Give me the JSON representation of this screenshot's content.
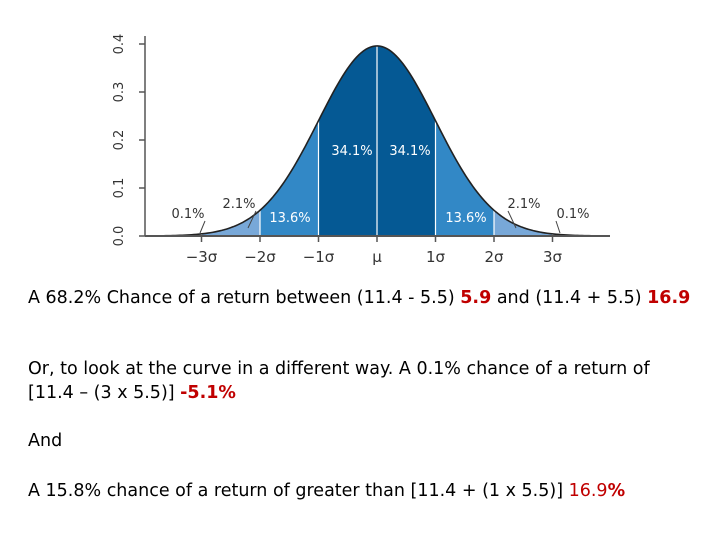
{
  "chart_data": {
    "type": "area",
    "title": "",
    "xlabel": "",
    "ylabel": "",
    "xlim": [
      -3.8,
      3.8
    ],
    "ylim": [
      0,
      0.4
    ],
    "x_ticks": [
      {
        "value": -3,
        "label": "−3σ"
      },
      {
        "value": -2,
        "label": "−2σ"
      },
      {
        "value": -1,
        "label": "−1σ"
      },
      {
        "value": 0,
        "label": "μ"
      },
      {
        "value": 1,
        "label": "1σ"
      },
      {
        "value": 2,
        "label": "2σ"
      },
      {
        "value": 3,
        "label": "3σ"
      }
    ],
    "y_ticks": [
      {
        "value": 0.0,
        "label": "0.0"
      },
      {
        "value": 0.1,
        "label": "0.1"
      },
      {
        "value": 0.2,
        "label": "0.2"
      },
      {
        "value": 0.3,
        "label": "0.3"
      },
      {
        "value": 0.4,
        "label": "0.4"
      }
    ],
    "regions": [
      {
        "from": -4,
        "to": -3,
        "label": "0.1%",
        "color": "#c5d9ee"
      },
      {
        "from": -3,
        "to": -2,
        "label": "2.1%",
        "color": "#78a8d8"
      },
      {
        "from": -2,
        "to": -1,
        "label": "13.6%",
        "color": "#3288c6"
      },
      {
        "from": -1,
        "to": 0,
        "label": "34.1%",
        "color": "#055994"
      },
      {
        "from": 0,
        "to": 1,
        "label": "34.1%",
        "color": "#055994"
      },
      {
        "from": 1,
        "to": 2,
        "label": "13.6%",
        "color": "#3288c6"
      },
      {
        "from": 2,
        "to": 3,
        "label": "2.1%",
        "color": "#78a8d8"
      },
      {
        "from": 3,
        "to": 4,
        "label": "0.1%",
        "color": "#c5d9ee"
      }
    ],
    "grid": false
  },
  "text": {
    "p1_a": "A 68.2% Chance of a return between (11.4 - 5.5) ",
    "p1_b": "5.9",
    "p1_c": " and (11.4 + 5.5) ",
    "p1_d": "16.9",
    "p2_a": "Or, to look at the curve in a different way. A 0.1% chance of a return of [11.4 – (3 x 5.5)] ",
    "p2_b": "-5.1%",
    "p3": "And",
    "p4_a": "A 15.8% chance of a return of greater than [11.4 + (1 x 5.5)] ",
    "p4_b": "16.9",
    "p4_c": "%"
  },
  "colors": {
    "accent_red": "#c00000",
    "axis": "#555555",
    "curve": "#222222",
    "dark_label": "#ffffff",
    "outside_label": "#333333"
  }
}
